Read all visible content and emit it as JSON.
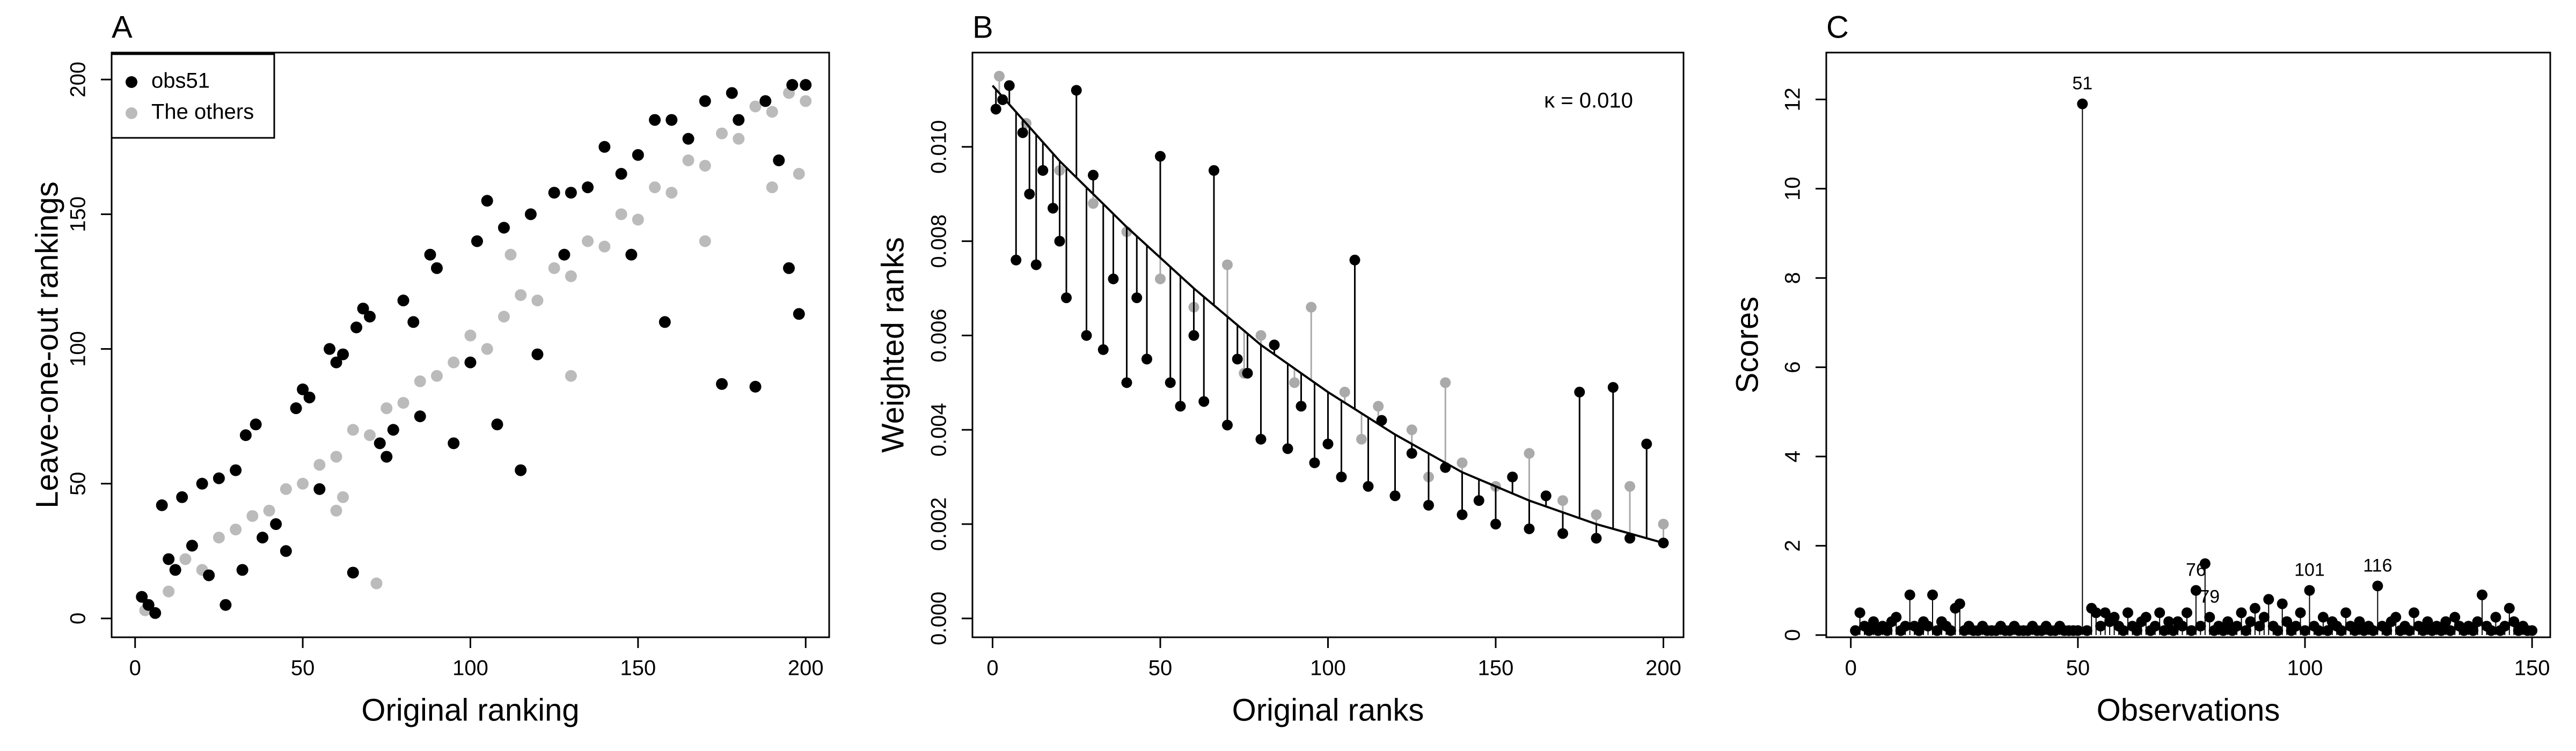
{
  "chart_data": [
    {
      "type": "scatter",
      "panel": "A",
      "xlabel": "Original ranking",
      "ylabel": "Leave-one-out rankings",
      "xlim": [
        -7,
        207
      ],
      "ylim": [
        -7,
        210
      ],
      "xticks": [
        0,
        50,
        100,
        150,
        200
      ],
      "yticks": [
        0,
        50,
        100,
        150,
        200
      ],
      "legend": "top-left",
      "series": [
        {
          "name": "The others",
          "color": "#bbbbbb",
          "x": [
            3,
            10,
            15,
            20,
            25,
            30,
            35,
            40,
            45,
            50,
            55,
            60,
            62,
            65,
            70,
            72,
            75,
            80,
            85,
            90,
            95,
            100,
            105,
            110,
            112,
            115,
            120,
            125,
            130,
            135,
            140,
            145,
            150,
            155,
            160,
            165,
            170,
            175,
            180,
            185,
            190,
            195,
            200,
            198,
            170,
            190,
            130,
            60
          ],
          "values": [
            3,
            10,
            22,
            18,
            30,
            33,
            38,
            40,
            48,
            50,
            57,
            60,
            45,
            70,
            68,
            13,
            78,
            80,
            88,
            90,
            95,
            105,
            100,
            112,
            135,
            120,
            118,
            130,
            127,
            140,
            138,
            150,
            148,
            160,
            158,
            170,
            168,
            180,
            178,
            190,
            188,
            195,
            192,
            165,
            140,
            160,
            90,
            40
          ]
        },
        {
          "name": "obs51",
          "color": "#000000",
          "x": [
            2,
            4,
            6,
            8,
            10,
            12,
            14,
            17,
            20,
            22,
            25,
            27,
            30,
            32,
            33,
            36,
            38,
            42,
            45,
            48,
            50,
            52,
            55,
            58,
            60,
            62,
            65,
            66,
            68,
            70,
            73,
            75,
            77,
            80,
            83,
            85,
            88,
            90,
            95,
            100,
            102,
            105,
            108,
            110,
            115,
            118,
            120,
            125,
            128,
            130,
            135,
            140,
            145,
            148,
            150,
            155,
            158,
            160,
            165,
            170,
            175,
            178,
            180,
            185,
            188,
            192,
            195,
            198,
            200,
            196
          ],
          "values": [
            8,
            5,
            2,
            42,
            22,
            18,
            45,
            27,
            50,
            16,
            52,
            5,
            55,
            18,
            68,
            72,
            30,
            35,
            25,
            78,
            85,
            82,
            48,
            100,
            95,
            98,
            17,
            108,
            115,
            112,
            65,
            60,
            70,
            118,
            110,
            75,
            135,
            130,
            65,
            95,
            140,
            155,
            72,
            145,
            55,
            150,
            98,
            158,
            135,
            158,
            160,
            175,
            165,
            135,
            172,
            185,
            110,
            185,
            178,
            192,
            87,
            195,
            185,
            86,
            192,
            170,
            130,
            113,
            198,
            198
          ]
        }
      ]
    },
    {
      "type": "scatter_curve",
      "panel": "B",
      "xlabel": "Original ranks",
      "ylabel": "Weighted ranks",
      "annotation": "κ  =  0.010",
      "xlim": [
        -6,
        206
      ],
      "ylim": [
        -0.0004,
        0.012
      ],
      "xticks": [
        0,
        50,
        100,
        150,
        200
      ],
      "yticks": [
        {
          "value": 0,
          "label": "0.000"
        },
        0.002,
        0.004,
        0.006,
        0.008,
        {
          "value": 0.01,
          "label": "0.010"
        }
      ],
      "series": [
        {
          "color": "#aaaaaa",
          "x": [
            2,
            10,
            20,
            30,
            40,
            50,
            60,
            70,
            80,
            90,
            95,
            105,
            115,
            125,
            135,
            140,
            150,
            160,
            170,
            180,
            190,
            200,
            110,
            130,
            75
          ],
          "values": [
            0.0115,
            0.0105,
            0.0095,
            0.0088,
            0.0082,
            0.0072,
            0.0066,
            0.0075,
            0.006,
            0.005,
            0.0066,
            0.0048,
            0.0045,
            0.004,
            0.005,
            0.0033,
            0.0028,
            0.0035,
            0.0025,
            0.0022,
            0.0028,
            0.002,
            0.0038,
            0.003,
            0.0052
          ]
        },
        {
          "color": "#000000",
          "x": [
            1,
            3,
            5,
            7,
            9,
            11,
            13,
            15,
            18,
            20,
            22,
            25,
            28,
            30,
            33,
            36,
            40,
            43,
            46,
            50,
            53,
            56,
            60,
            63,
            66,
            70,
            73,
            76,
            80,
            84,
            88,
            92,
            96,
            100,
            104,
            108,
            112,
            116,
            120,
            125,
            130,
            135,
            140,
            145,
            150,
            155,
            160,
            165,
            170,
            175,
            180,
            185,
            190,
            195,
            200
          ],
          "values": [
            0.0108,
            0.011,
            0.0113,
            0.0076,
            0.0103,
            0.009,
            0.0075,
            0.0095,
            0.0087,
            0.008,
            0.0068,
            0.0112,
            0.006,
            0.0094,
            0.0057,
            0.0072,
            0.005,
            0.0068,
            0.0055,
            0.0098,
            0.005,
            0.0045,
            0.006,
            0.0046,
            0.0095,
            0.0041,
            0.0055,
            0.0052,
            0.0038,
            0.0058,
            0.0036,
            0.0045,
            0.0033,
            0.0037,
            0.003,
            0.0076,
            0.0028,
            0.0042,
            0.0026,
            0.0035,
            0.0024,
            0.0032,
            0.0022,
            0.0025,
            0.002,
            0.003,
            0.0019,
            0.0026,
            0.0018,
            0.0048,
            0.0017,
            0.0049,
            0.0017,
            0.0037,
            0.0016
          ]
        }
      ],
      "curve": {
        "color": "#000000",
        "x": [
          0,
          20,
          40,
          60,
          80,
          100,
          120,
          140,
          160,
          180,
          200
        ],
        "values": [
          0.0113,
          0.0097,
          0.0083,
          0.007,
          0.0058,
          0.0048,
          0.0039,
          0.0031,
          0.0025,
          0.002,
          0.0016
        ]
      }
    },
    {
      "type": "stem",
      "panel": "C",
      "xlabel": "Observations",
      "ylabel": "Scores",
      "xlim": [
        -5.4,
        154
      ],
      "ylim": [
        -0.05,
        13.05
      ],
      "xticks": [
        0,
        50,
        100,
        150
      ],
      "yticks": [
        0,
        2,
        4,
        6,
        8,
        10,
        12
      ],
      "color": "#000000",
      "labeled_x": [
        51,
        76,
        79,
        101,
        116
      ],
      "x": [
        1,
        2,
        3,
        4,
        5,
        6,
        7,
        8,
        9,
        10,
        11,
        12,
        13,
        14,
        15,
        16,
        17,
        18,
        19,
        20,
        21,
        22,
        23,
        24,
        25,
        26,
        27,
        28,
        29,
        30,
        31,
        32,
        33,
        34,
        35,
        36,
        37,
        38,
        39,
        40,
        41,
        42,
        43,
        44,
        45,
        46,
        47,
        48,
        49,
        50,
        51,
        52,
        53,
        54,
        55,
        56,
        57,
        58,
        59,
        60,
        61,
        62,
        63,
        64,
        65,
        66,
        67,
        68,
        69,
        70,
        71,
        72,
        73,
        74,
        75,
        76,
        77,
        78,
        79,
        80,
        81,
        82,
        83,
        84,
        85,
        86,
        87,
        88,
        89,
        90,
        91,
        92,
        93,
        94,
        95,
        96,
        97,
        98,
        99,
        100,
        101,
        102,
        103,
        104,
        105,
        106,
        107,
        108,
        109,
        110,
        111,
        112,
        113,
        114,
        115,
        116,
        117,
        118,
        119,
        120,
        121,
        122,
        123,
        124,
        125,
        126,
        127,
        128,
        129,
        130,
        131,
        132,
        133,
        134,
        135,
        136,
        137,
        138,
        139,
        140,
        141,
        142,
        143,
        144,
        145,
        146,
        147,
        148,
        149,
        150
      ],
      "values": [
        0.1,
        0.5,
        0.2,
        0.1,
        0.3,
        0.1,
        0.2,
        0.1,
        0.3,
        0.4,
        0.1,
        0.2,
        0.9,
        0.2,
        0.1,
        0.3,
        0.2,
        0.9,
        0.1,
        0.3,
        0.2,
        0.1,
        0.6,
        0.7,
        0.1,
        0.2,
        0.1,
        0.1,
        0.2,
        0.1,
        0.1,
        0.1,
        0.2,
        0.1,
        0.1,
        0.2,
        0.1,
        0.1,
        0.1,
        0.2,
        0.1,
        0.1,
        0.2,
        0.1,
        0.1,
        0.2,
        0.1,
        0.1,
        0.1,
        0.1,
        11.9,
        0.1,
        0.6,
        0.5,
        0.2,
        0.5,
        0.3,
        0.4,
        0.2,
        0.1,
        0.5,
        0.2,
        0.1,
        0.3,
        0.4,
        0.1,
        0.2,
        0.5,
        0.1,
        0.3,
        0.1,
        0.3,
        0.2,
        0.5,
        0.1,
        1.0,
        0.2,
        1.6,
        0.4,
        0.1,
        0.2,
        0.1,
        0.3,
        0.1,
        0.2,
        0.5,
        0.1,
        0.3,
        0.6,
        0.2,
        0.4,
        0.8,
        0.2,
        0.1,
        0.7,
        0.3,
        0.1,
        0.2,
        0.5,
        0.1,
        1.0,
        0.2,
        0.1,
        0.4,
        0.1,
        0.3,
        0.2,
        0.1,
        0.5,
        0.2,
        0.1,
        0.3,
        0.1,
        0.2,
        0.1,
        1.1,
        0.2,
        0.1,
        0.3,
        0.4,
        0.1,
        0.2,
        0.1,
        0.5,
        0.2,
        0.1,
        0.3,
        0.1,
        0.2,
        0.1,
        0.3,
        0.1,
        0.4,
        0.2,
        0.1,
        0.2,
        0.1,
        0.3,
        0.9,
        0.2,
        0.1,
        0.4,
        0.1,
        0.2,
        0.6,
        0.3,
        0.1,
        0.2,
        0.1,
        0.1
      ]
    }
  ]
}
